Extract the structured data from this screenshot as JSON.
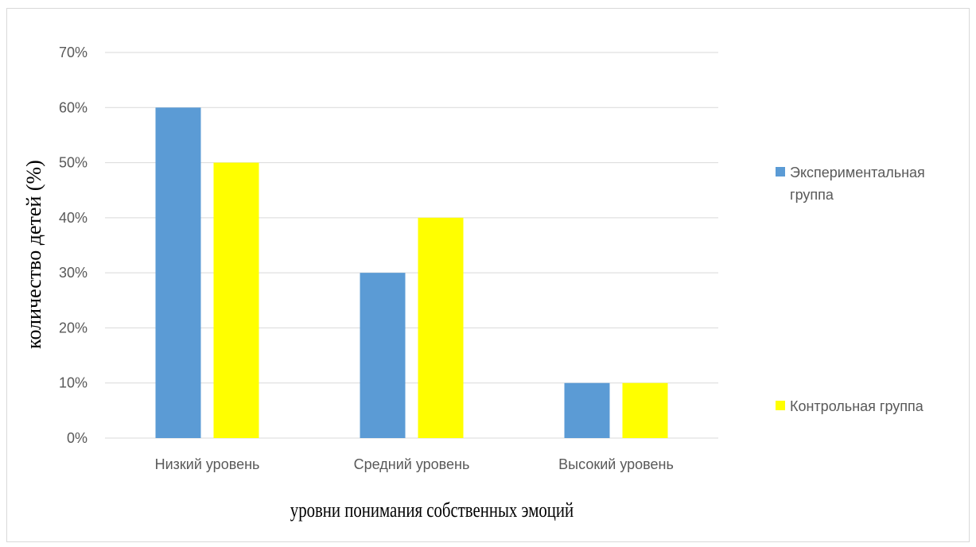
{
  "chart_data": {
    "type": "bar",
    "categories": [
      "Низкий уровень",
      "Средний уровень",
      "Высокий уровень"
    ],
    "series": [
      {
        "name": "Экспериментальная группа",
        "values": [
          60,
          30,
          10
        ],
        "color": "#5b9bd5"
      },
      {
        "name": "Контрольная группа",
        "values": [
          50,
          40,
          10
        ],
        "color": "#ffff00"
      }
    ],
    "ylim": [
      0,
      70
    ],
    "yticks": [
      0,
      10,
      20,
      30,
      40,
      50,
      60,
      70
    ],
    "y_unit": "%",
    "xlabel": "уровни понимания собственных эмоций",
    "ylabel": "количество детей (%)",
    "grid": true,
    "legend": "right"
  },
  "legend_lines": [
    [
      "Экспериментальная",
      "группа"
    ],
    [
      "Контрольная группа"
    ]
  ],
  "grid_color": "#d9d9d9"
}
